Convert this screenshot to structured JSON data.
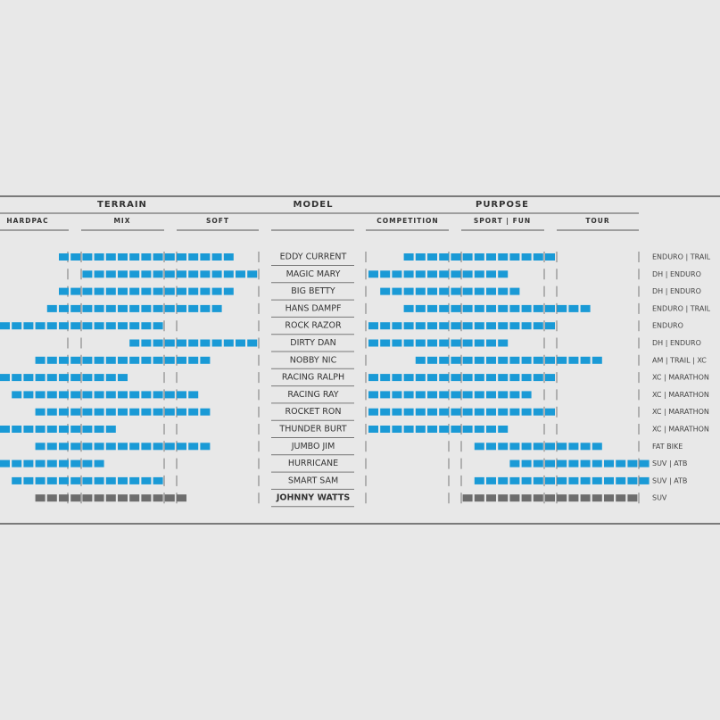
{
  "headers": {
    "terrain": "TERRAIN",
    "model": "MODEL",
    "purpose": "PURPOSE"
  },
  "subheaders": {
    "hardpac": "HARDPAC",
    "mix": "MIX",
    "soft": "SOFT",
    "competition": "COMPETITION",
    "sport_fun": "SPORT | FUN",
    "tour": "TOUR"
  },
  "color": "#1a9ad6",
  "muted_color": "#6d6d6d",
  "rows": [
    {
      "name": "EDDY CURRENT",
      "terrain": [
        5,
        19
      ],
      "purpose": [
        3,
        15
      ],
      "use": "ENDURO | TRAIL"
    },
    {
      "name": "MAGIC MARY",
      "terrain": [
        7,
        21
      ],
      "purpose": [
        0,
        11
      ],
      "use": "DH | ENDURO"
    },
    {
      "name": "BIG BETTY",
      "terrain": [
        5,
        19
      ],
      "purpose": [
        1,
        12
      ],
      "use": "DH | ENDURO"
    },
    {
      "name": "HANS DAMPF",
      "terrain": [
        4,
        18
      ],
      "purpose": [
        3,
        18
      ],
      "use": "ENDURO | TRAIL"
    },
    {
      "name": "ROCK RAZOR",
      "terrain": [
        0,
        13
      ],
      "purpose": [
        0,
        15
      ],
      "use": "ENDURO"
    },
    {
      "name": "DIRTY DAN",
      "terrain": [
        11,
        21
      ],
      "purpose": [
        0,
        11
      ],
      "use": "DH | ENDURO"
    },
    {
      "name": "NOBBY NIC",
      "terrain": [
        3,
        17
      ],
      "purpose": [
        4,
        19
      ],
      "use": "AM | TRAIL | XC"
    },
    {
      "name": "RACING RALPH",
      "terrain": [
        0,
        10
      ],
      "purpose": [
        0,
        15
      ],
      "use": "XC | MARATHON"
    },
    {
      "name": "RACING RAY",
      "terrain": [
        1,
        16
      ],
      "purpose": [
        0,
        13
      ],
      "use": "XC | MARATHON"
    },
    {
      "name": "ROCKET RON",
      "terrain": [
        3,
        17
      ],
      "purpose": [
        0,
        15
      ],
      "use": "XC | MARATHON"
    },
    {
      "name": "THUNDER BURT",
      "terrain": [
        0,
        9
      ],
      "purpose": [
        0,
        11
      ],
      "use": "XC | MARATHON"
    },
    {
      "name": "JUMBO JIM",
      "terrain": [
        3,
        17
      ],
      "purpose": [
        9,
        19
      ],
      "use": "FAT BIKE"
    },
    {
      "name": "HURRICANE",
      "terrain": [
        0,
        8
      ],
      "purpose": [
        12,
        23
      ],
      "use": "SUV | ATB"
    },
    {
      "name": "SMART SAM",
      "terrain": [
        1,
        13
      ],
      "purpose": [
        9,
        23
      ],
      "use": "SUV | ATB"
    },
    {
      "name": "JOHNNY WATTS",
      "terrain": [
        3,
        15
      ],
      "purpose": [
        8,
        22
      ],
      "use": "SUV",
      "muted": true
    }
  ]
}
